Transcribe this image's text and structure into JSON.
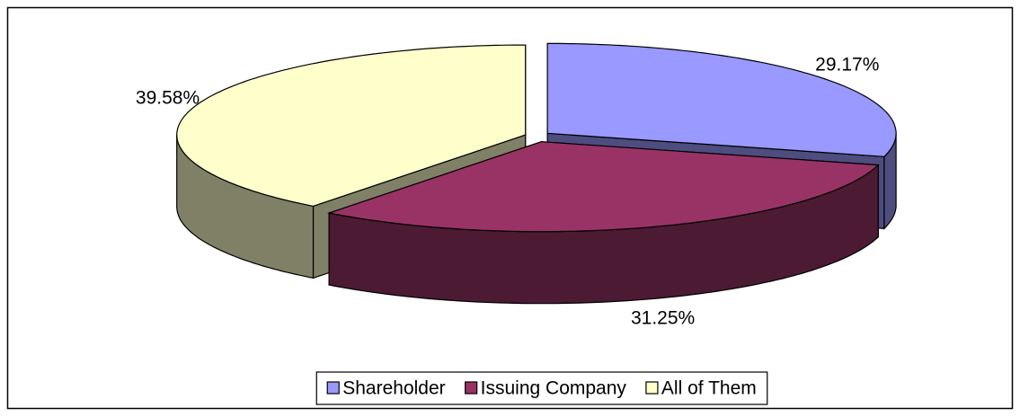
{
  "chart_data": {
    "type": "pie3d",
    "categories": [
      "Shareholder",
      "Issuing Company",
      "All of Them"
    ],
    "values": [
      29.17,
      31.25,
      39.58
    ],
    "value_labels": [
      "29.17%",
      "31.25%",
      "39.58%"
    ],
    "colors": [
      "#9999ff",
      "#993366",
      "#ffffcc"
    ],
    "legend": "bottom"
  }
}
